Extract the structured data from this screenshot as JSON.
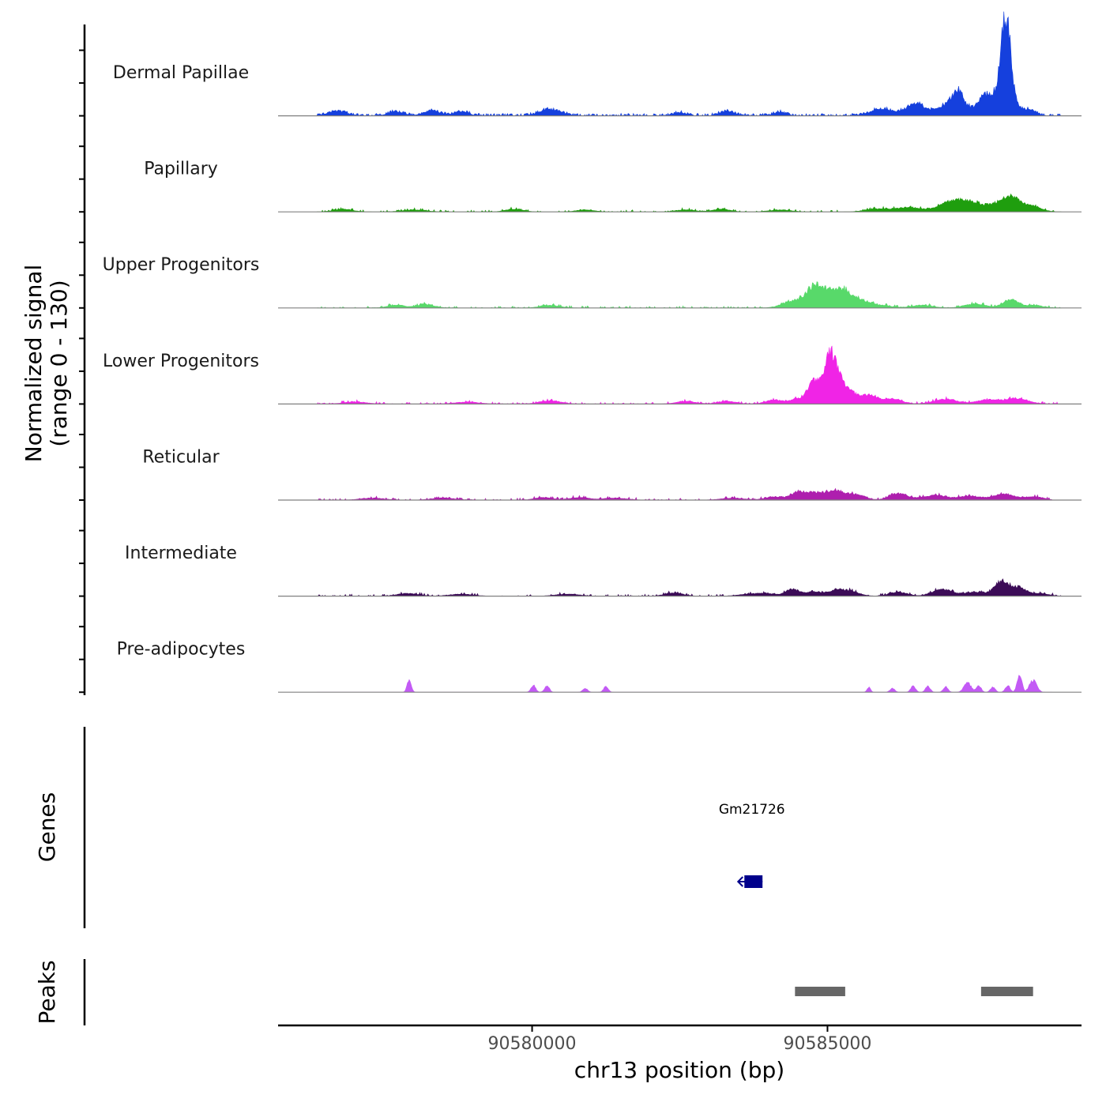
{
  "colors": {
    "baseline": "#808080",
    "axis": "#000000",
    "peak": "#666666",
    "gene": "#00008b"
  },
  "chart_data": {
    "type": "area",
    "title": "",
    "ylabel_line1": "Normalized signal",
    "ylabel_line2": "(range 0 - 130)",
    "ylim": [
      0,
      130
    ],
    "xlabel": "chr13 position (bp)",
    "xlim": [
      90575700,
      90589300
    ],
    "x_ticks": [
      90580000,
      90585000
    ],
    "x_tick_labels": [
      "90580000",
      "90585000"
    ],
    "series": [
      {
        "name": "Dermal Papillae",
        "color": "#1540dd",
        "start": 90576360,
        "end": 90588960,
        "noise": [
          3,
          0.3,
          0.62
        ],
        "seed": 11,
        "peaks": [
          [
            90576700,
            7,
            140
          ],
          [
            90577700,
            6,
            130
          ],
          [
            90578300,
            7,
            140
          ],
          [
            90578800,
            6,
            120
          ],
          [
            90580300,
            9,
            180
          ],
          [
            90582500,
            5,
            100
          ],
          [
            90583300,
            6,
            120
          ],
          [
            90584200,
            5,
            110
          ],
          [
            90585900,
            10,
            180
          ],
          [
            90586500,
            18,
            170
          ],
          [
            90586950,
            12,
            110
          ],
          [
            90587200,
            35,
            110
          ],
          [
            90587650,
            12,
            90
          ],
          [
            90588020,
            124,
            85
          ],
          [
            90587850,
            26,
            260
          ],
          [
            90588420,
            7,
            100
          ]
        ]
      },
      {
        "name": "Papillary",
        "color": "#1f9e0e",
        "start": 90576360,
        "end": 90588960,
        "noise": [
          2.5,
          0.3,
          0.2
        ],
        "seed": 23,
        "peaks": [
          [
            90576800,
            4,
            160
          ],
          [
            90578000,
            3,
            200
          ],
          [
            90579700,
            4,
            150
          ],
          [
            90580900,
            3,
            150
          ],
          [
            90582600,
            3,
            160
          ],
          [
            90583200,
            4,
            150
          ],
          [
            90584200,
            3,
            180
          ],
          [
            90585800,
            4,
            180
          ],
          [
            90586350,
            6,
            250
          ],
          [
            90587150,
            16,
            230
          ],
          [
            90587600,
            9,
            260
          ],
          [
            90588100,
            22,
            180
          ],
          [
            90588500,
            6,
            150
          ]
        ]
      },
      {
        "name": "Upper Progenitors",
        "color": "#58d96a",
        "start": 90576360,
        "end": 90588960,
        "noise": [
          2.5,
          0.3,
          0.25
        ],
        "seed": 37,
        "peaks": [
          [
            90577700,
            4,
            150
          ],
          [
            90578200,
            5,
            150
          ],
          [
            90580300,
            4,
            160
          ],
          [
            90584400,
            10,
            170
          ],
          [
            90584800,
            33,
            150
          ],
          [
            90585200,
            28,
            170
          ],
          [
            90585550,
            10,
            150
          ],
          [
            90585900,
            4,
            180
          ],
          [
            90586600,
            4,
            180
          ],
          [
            90587500,
            6,
            180
          ],
          [
            90588100,
            12,
            130
          ],
          [
            90588500,
            4,
            150
          ]
        ]
      },
      {
        "name": "Lower Progenitors",
        "color": "#f024e6",
        "start": 90576360,
        "end": 90588960,
        "noise": [
          2.5,
          0.3,
          0.25
        ],
        "seed": 53,
        "peaks": [
          [
            90577000,
            3,
            200
          ],
          [
            90578900,
            3,
            200
          ],
          [
            90580300,
            5,
            180
          ],
          [
            90582600,
            4,
            160
          ],
          [
            90583300,
            4,
            160
          ],
          [
            90584100,
            6,
            150
          ],
          [
            90584500,
            8,
            120
          ],
          [
            90584750,
            30,
            90
          ],
          [
            90585050,
            73,
            120
          ],
          [
            90585320,
            20,
            150
          ],
          [
            90585700,
            12,
            140
          ],
          [
            90586100,
            7,
            160
          ],
          [
            90587000,
            7,
            200
          ],
          [
            90587700,
            6,
            180
          ],
          [
            90588200,
            8,
            200
          ]
        ]
      },
      {
        "name": "Reticular",
        "color": "#ae1fae",
        "start": 90576360,
        "end": 90588800,
        "noise": [
          2.5,
          0.3,
          0.2
        ],
        "seed": 67,
        "peaks": [
          [
            90577300,
            3,
            200
          ],
          [
            90578500,
            3,
            200
          ],
          [
            90580200,
            4,
            150
          ],
          [
            90580800,
            4,
            150
          ],
          [
            90581400,
            3,
            200
          ],
          [
            90583400,
            3,
            200
          ],
          [
            90584100,
            5,
            150
          ],
          [
            90584500,
            12,
            120
          ],
          [
            90584800,
            11,
            140
          ],
          [
            90585150,
            14,
            140
          ],
          [
            90585500,
            8,
            140
          ],
          [
            90586200,
            10,
            150
          ],
          [
            90586800,
            7,
            200
          ],
          [
            90587400,
            6,
            200
          ],
          [
            90588000,
            9,
            180
          ],
          [
            90588500,
            5,
            150
          ]
        ]
      },
      {
        "name": "Intermediate",
        "color": "#3c0c57",
        "start": 90576360,
        "end": 90588960,
        "noise": [
          2.5,
          0.3,
          0.2
        ],
        "seed": 79,
        "peaks": [
          [
            90577900,
            4,
            180
          ],
          [
            90578800,
            3,
            200
          ],
          [
            90580600,
            3,
            200
          ],
          [
            90582400,
            5,
            150
          ],
          [
            90583700,
            3,
            200
          ],
          [
            90584000,
            3,
            150
          ],
          [
            90584400,
            10,
            110
          ],
          [
            90584750,
            6,
            150
          ],
          [
            90585150,
            8,
            150
          ],
          [
            90585400,
            6,
            150
          ],
          [
            90586200,
            6,
            150
          ],
          [
            90586950,
            10,
            170
          ],
          [
            90587500,
            6,
            180
          ],
          [
            90587950,
            22,
            120
          ],
          [
            90588250,
            13,
            110
          ],
          [
            90588600,
            4,
            150
          ]
        ]
      },
      {
        "name": "Pre-adipocytes",
        "color": "#c35af5",
        "start": 90576360,
        "end": 90588800,
        "noise": [
          0,
          0,
          0
        ],
        "seed": 91,
        "peaks": [
          [
            90577920,
            18,
            35
          ],
          [
            90580020,
            10,
            40
          ],
          [
            90580250,
            10,
            40
          ],
          [
            90580900,
            6,
            40
          ],
          [
            90581250,
            8,
            40
          ],
          [
            90585700,
            7,
            30
          ],
          [
            90586100,
            6,
            40
          ],
          [
            90586450,
            9,
            40
          ],
          [
            90586700,
            9,
            40
          ],
          [
            90587000,
            8,
            40
          ],
          [
            90587370,
            14,
            60
          ],
          [
            90587560,
            10,
            40
          ],
          [
            90587800,
            8,
            40
          ],
          [
            90588050,
            10,
            40
          ],
          [
            90588250,
            26,
            40
          ],
          [
            90588480,
            18,
            60
          ]
        ]
      }
    ],
    "genes": [
      {
        "name": "Gm21726",
        "start": 90583540,
        "end": 90583900,
        "strand": "-"
      }
    ],
    "peaks_track": {
      "label": "Peaks",
      "regions": [
        [
          90584450,
          90585300
        ],
        [
          90587600,
          90588480
        ]
      ]
    },
    "genes_track_label": "Genes"
  }
}
